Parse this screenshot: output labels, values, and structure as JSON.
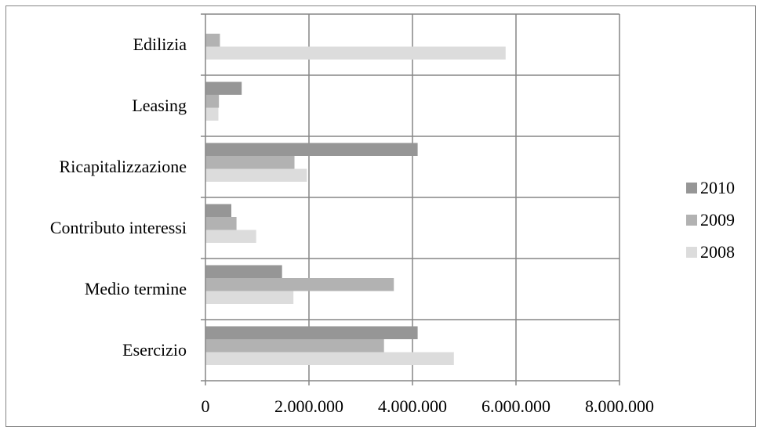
{
  "chart_data": {
    "type": "bar",
    "orientation": "horizontal",
    "categories": [
      "Esercizio",
      "Medio termine",
      "Contributo interessi",
      "Ricapitalizzazione",
      "Leasing",
      "Edilizia"
    ],
    "series": [
      {
        "name": "2010",
        "color": "#969696",
        "values": [
          4100000,
          1480000,
          500000,
          4100000,
          700000,
          null
        ]
      },
      {
        "name": "2009",
        "color": "#b2b2b2",
        "values": [
          3450000,
          3640000,
          600000,
          1720000,
          260000,
          280000
        ]
      },
      {
        "name": "2008",
        "color": "#dcdcdc",
        "values": [
          4800000,
          1700000,
          980000,
          1960000,
          250000,
          5800000
        ]
      }
    ],
    "xlim": [
      0,
      8000000
    ],
    "xticks": [
      0,
      2000000,
      4000000,
      6000000,
      8000000
    ],
    "xtick_labels": [
      "0",
      "2.000.000",
      "4.000.000",
      "6.000.000",
      "8.000.000"
    ],
    "grid": true,
    "legend_position": "right",
    "legend_order": [
      "2010",
      "2009",
      "2008"
    ]
  }
}
